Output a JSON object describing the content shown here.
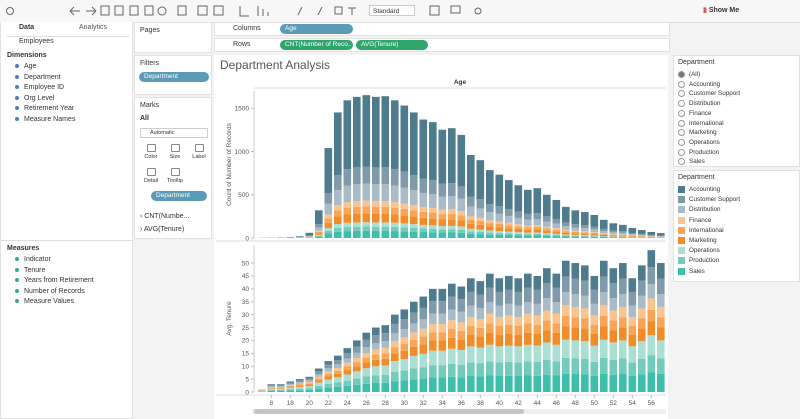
{
  "toolbar": {
    "fit": "Standard",
    "show_me": "Show Me"
  },
  "data_pane": {
    "tabs": [
      "Data",
      "Analytics"
    ],
    "source": "Employees",
    "dimensions_title": "Dimensions",
    "dimensions": [
      "Age",
      "Department",
      "Employee ID",
      "Org Level",
      "Retirement Year",
      "Measure Names"
    ],
    "measures_title": "Measures",
    "measures": [
      "Indicator",
      "Tenure",
      "Years from Retirement",
      "Number of Records",
      "Measure Values"
    ]
  },
  "pages": "Pages",
  "filters": {
    "title": "Filters",
    "items": [
      "Department"
    ]
  },
  "marks": {
    "title": "Marks",
    "all": "All",
    "mark_type": "Automatic",
    "buttons": [
      "Color",
      "Size",
      "Label",
      "Detail",
      "Tooltip"
    ],
    "color_pill": "Department",
    "cards": [
      "CNT(Numbe...",
      "AVG(Tenure)"
    ]
  },
  "shelves": {
    "columns_label": "Columns",
    "columns": [
      "Age"
    ],
    "rows_label": "Rows",
    "rows": [
      "CNT(Number of Reco..",
      "AVG(Tenure)"
    ]
  },
  "view": {
    "title": "Department Analysis"
  },
  "filter_card": {
    "title": "Department",
    "options": [
      "(All)",
      "Accounting",
      "Customer Support",
      "Distribution",
      "Finance",
      "International",
      "Marketing",
      "Operations",
      "Production",
      "Sales"
    ]
  },
  "legend_title": "Department",
  "chart_data": [
    {
      "type": "bar",
      "stacked": true,
      "x_label": "Age",
      "y_label": "Count of Number of Records",
      "ylim": [
        0,
        1700
      ],
      "yticks": [
        0,
        500,
        1000,
        1500
      ],
      "series": [
        {
          "name": "Accounting",
          "color": "#4f7b8e",
          "values": [
            2,
            2,
            3,
            5,
            10,
            30,
            160,
            520,
            725,
            795,
            815,
            825,
            815,
            820,
            795,
            765,
            725,
            685,
            670,
            625,
            635,
            595,
            480,
            450,
            393,
            365,
            335,
            305,
            278,
            288,
            250,
            220,
            180,
            160,
            150,
            133,
            105,
            85,
            75,
            58,
            45,
            35,
            28
          ]
        },
        {
          "name": "Customer Support",
          "color": "#7f9aab",
          "values": [
            0,
            1,
            1,
            1,
            2,
            7,
            38,
            125,
            174,
            191,
            196,
            198,
            196,
            197,
            191,
            184,
            174,
            164,
            161,
            150,
            152,
            143,
            115,
            108,
            94,
            88,
            80,
            73,
            67,
            69,
            60,
            53,
            43,
            38,
            36,
            32,
            25,
            20,
            18,
            14,
            11,
            8,
            7
          ]
        },
        {
          "name": "Distribution",
          "color": "#a9bbc6",
          "values": [
            0,
            1,
            1,
            1,
            2,
            7,
            38,
            125,
            174,
            191,
            196,
            198,
            196,
            197,
            191,
            184,
            174,
            164,
            161,
            150,
            152,
            143,
            115,
            108,
            94,
            88,
            80,
            73,
            67,
            69,
            60,
            53,
            43,
            38,
            36,
            32,
            25,
            20,
            18,
            14,
            11,
            8,
            7
          ]
        },
        {
          "name": "Finance",
          "color": "#fbc48e",
          "values": [
            0,
            0,
            0,
            1,
            1,
            2,
            13,
            42,
            58,
            64,
            65,
            66,
            65,
            66,
            64,
            61,
            58,
            55,
            54,
            50,
            51,
            48,
            38,
            36,
            31,
            29,
            27,
            24,
            22,
            23,
            20,
            18,
            14,
            13,
            12,
            11,
            8,
            7,
            6,
            5,
            4,
            3,
            2
          ]
        },
        {
          "name": "International",
          "color": "#f9a557",
          "values": [
            0,
            0,
            1,
            1,
            1,
            3,
            16,
            52,
            73,
            80,
            82,
            83,
            82,
            82,
            80,
            77,
            73,
            69,
            67,
            63,
            64,
            60,
            48,
            45,
            39,
            37,
            34,
            31,
            28,
            29,
            25,
            22,
            18,
            16,
            15,
            13,
            11,
            9,
            8,
            6,
            5,
            4,
            3
          ]
        },
        {
          "name": "Marketing",
          "color": "#f28c28",
          "values": [
            0,
            0,
            0,
            1,
            1,
            4,
            19,
            62,
            87,
            95,
            98,
            99,
            98,
            98,
            95,
            92,
            87,
            82,
            80,
            75,
            76,
            71,
            58,
            54,
            47,
            44,
            40,
            37,
            33,
            35,
            30,
            26,
            22,
            19,
            18,
            16,
            13,
            10,
            9,
            7,
            5,
            4,
            3
          ]
        },
        {
          "name": "Operations",
          "color": "#acdfd4",
          "values": [
            0,
            0,
            0,
            0,
            1,
            2,
            10,
            31,
            44,
            48,
            49,
            50,
            49,
            49,
            48,
            46,
            44,
            41,
            40,
            38,
            38,
            36,
            29,
            27,
            24,
            22,
            20,
            18,
            17,
            17,
            15,
            13,
            11,
            10,
            9,
            8,
            6,
            5,
            5,
            3,
            3,
            2,
            2
          ]
        },
        {
          "name": "Production",
          "color": "#72cbbb",
          "values": [
            0,
            0,
            0,
            0,
            1,
            2,
            10,
            31,
            44,
            48,
            49,
            50,
            49,
            49,
            48,
            46,
            44,
            41,
            40,
            38,
            38,
            36,
            29,
            27,
            24,
            22,
            20,
            18,
            17,
            17,
            15,
            13,
            11,
            10,
            9,
            8,
            6,
            5,
            5,
            3,
            3,
            2,
            2
          ]
        },
        {
          "name": "Sales",
          "color": "#3dbfac",
          "values": [
            0,
            0,
            1,
            1,
            1,
            3,
            16,
            52,
            73,
            80,
            82,
            83,
            82,
            82,
            80,
            77,
            73,
            69,
            67,
            63,
            64,
            60,
            48,
            45,
            39,
            37,
            34,
            31,
            28,
            29,
            25,
            22,
            18,
            16,
            15,
            13,
            11,
            9,
            8,
            6,
            5,
            4,
            3
          ]
        }
      ]
    },
    {
      "type": "bar",
      "stacked": true,
      "y_label": "Avg. Tenure",
      "categories": [
        null,
        8,
        null,
        18,
        null,
        20,
        null,
        22,
        null,
        24,
        null,
        26,
        null,
        28,
        null,
        30,
        null,
        32,
        null,
        34,
        null,
        36,
        null,
        38,
        null,
        40,
        null,
        42,
        null,
        44,
        null,
        46,
        null,
        48,
        null,
        50,
        null,
        52,
        null,
        54,
        null,
        56,
        null
      ],
      "ylim": [
        0,
        57
      ],
      "yticks": [
        0,
        5,
        10,
        15,
        20,
        25,
        30,
        35,
        40,
        45,
        50
      ],
      "series": [
        {
          "values": [
            0.1,
            0.4,
            0.4,
            0.5,
            0.6,
            0.7,
            1.1,
            1.4,
            1.7,
            2.0,
            2.4,
            2.8,
            3.0,
            3.1,
            3.6,
            3.8,
            4.2,
            4.4,
            4.8,
            4.8,
            5.0,
            4.9,
            5.3,
            5.2,
            5.5,
            5.3,
            5.4,
            5.3,
            5.5,
            5.4,
            5.8,
            5.5,
            6.1,
            6.0,
            5.9,
            5.4,
            6.1,
            5.8,
            6.0,
            5.3,
            5.9,
            6.6,
            6.0
          ]
        },
        {
          "values": [
            0.1,
            0.4,
            0.4,
            0.5,
            0.6,
            0.7,
            1.1,
            1.4,
            1.7,
            2.0,
            2.4,
            2.8,
            3.0,
            3.1,
            3.6,
            3.8,
            4.2,
            4.4,
            4.8,
            4.8,
            5.0,
            4.9,
            5.3,
            5.2,
            5.5,
            5.3,
            5.4,
            5.3,
            5.5,
            5.4,
            5.8,
            5.5,
            6.1,
            6.0,
            5.9,
            5.4,
            6.1,
            5.8,
            6.0,
            5.3,
            5.9,
            6.6,
            6.0
          ]
        },
        {
          "values": [
            0.1,
            0.3,
            0.3,
            0.4,
            0.5,
            0.6,
            0.9,
            1.2,
            1.4,
            1.7,
            2.0,
            2.3,
            2.5,
            2.6,
            3.0,
            3.2,
            3.5,
            3.7,
            4.0,
            4.0,
            4.2,
            4.1,
            4.4,
            4.3,
            4.6,
            4.4,
            4.5,
            4.4,
            4.6,
            4.5,
            4.8,
            4.6,
            5.1,
            5.0,
            4.9,
            4.5,
            5.1,
            4.8,
            5.0,
            4.4,
            4.9,
            5.5,
            5.0
          ]
        },
        {
          "values": [
            0.1,
            0.2,
            0.2,
            0.3,
            0.4,
            0.5,
            0.7,
            1.0,
            1.1,
            1.4,
            1.6,
            1.8,
            2.0,
            2.1,
            2.4,
            2.6,
            2.8,
            3.0,
            3.2,
            3.2,
            3.4,
            3.3,
            3.5,
            3.4,
            3.7,
            3.5,
            3.6,
            3.5,
            3.7,
            3.6,
            3.8,
            3.7,
            4.1,
            4.0,
            3.9,
            3.6,
            4.1,
            3.8,
            4.0,
            3.5,
            3.9,
            4.4,
            4.0
          ]
        },
        {
          "values": [
            0.1,
            0.2,
            0.2,
            0.3,
            0.4,
            0.5,
            0.7,
            1.0,
            1.1,
            1.4,
            1.6,
            1.8,
            2.0,
            2.1,
            2.4,
            2.6,
            2.8,
            3.0,
            3.2,
            3.2,
            3.4,
            3.3,
            3.5,
            3.4,
            3.7,
            3.5,
            3.6,
            3.5,
            3.7,
            3.6,
            3.8,
            3.7,
            4.1,
            4.0,
            3.9,
            3.6,
            4.1,
            3.8,
            4.0,
            3.5,
            3.9,
            4.4,
            4.0
          ]
        },
        {
          "values": [
            0.1,
            0.3,
            0.3,
            0.4,
            0.5,
            0.6,
            0.9,
            1.2,
            1.4,
            1.7,
            2.0,
            2.3,
            2.5,
            2.6,
            3.0,
            3.2,
            3.5,
            3.7,
            4.0,
            4.0,
            4.2,
            4.1,
            4.4,
            4.3,
            4.6,
            4.4,
            4.5,
            4.4,
            4.6,
            4.5,
            4.8,
            4.6,
            5.1,
            5.0,
            4.9,
            4.5,
            5.1,
            4.8,
            5.0,
            4.4,
            4.9,
            5.5,
            5.0
          ]
        },
        {
          "values": [
            0.1,
            0.4,
            0.4,
            0.6,
            0.7,
            0.8,
            1.3,
            1.7,
            2.0,
            2.4,
            2.8,
            3.2,
            3.5,
            3.6,
            4.2,
            4.5,
            4.9,
            5.2,
            5.6,
            5.6,
            5.9,
            5.7,
            6.2,
            6.0,
            6.4,
            6.2,
            6.3,
            6.2,
            6.4,
            6.3,
            6.7,
            6.4,
            7.1,
            7.0,
            6.9,
            6.3,
            7.1,
            6.7,
            7.0,
            6.2,
            6.9,
            7.7,
            7.0
          ]
        },
        {
          "values": [
            0.1,
            0.4,
            0.4,
            0.5,
            0.6,
            0.7,
            1.1,
            1.4,
            1.7,
            2.0,
            2.4,
            2.8,
            3.0,
            3.1,
            3.6,
            3.8,
            4.2,
            4.4,
            4.8,
            4.8,
            5.0,
            4.9,
            5.3,
            5.2,
            5.5,
            5.3,
            5.4,
            5.3,
            5.5,
            5.4,
            5.8,
            5.5,
            6.1,
            6.0,
            5.9,
            5.4,
            6.1,
            5.8,
            6.0,
            5.3,
            5.9,
            6.6,
            6.0
          ]
        },
        {
          "values": [
            0.1,
            0.4,
            0.4,
            0.6,
            0.7,
            0.8,
            1.3,
            1.7,
            2.0,
            2.4,
            2.8,
            3.2,
            3.5,
            3.6,
            4.2,
            4.5,
            4.9,
            5.2,
            5.6,
            5.6,
            5.9,
            5.7,
            6.2,
            6.0,
            6.4,
            6.2,
            6.3,
            6.2,
            6.4,
            6.3,
            6.7,
            6.4,
            7.1,
            7.0,
            6.9,
            6.3,
            7.1,
            6.7,
            7.0,
            6.2,
            6.9,
            7.7,
            7.0
          ]
        }
      ]
    }
  ]
}
